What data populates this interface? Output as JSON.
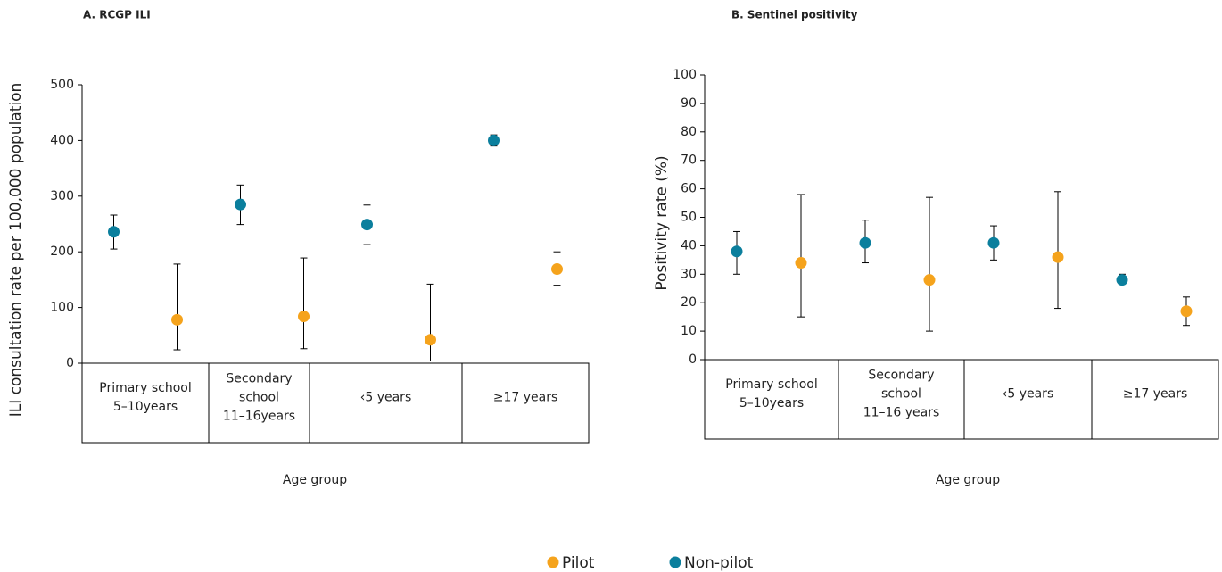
{
  "chart_data": [
    {
      "type": "scatter",
      "title": "A.  RCGP ILI",
      "ylabel": "ILI consultation  rate per 100,000 population",
      "xlabel": "Age group",
      "categories": [
        [
          "Primary school",
          "5–10years"
        ],
        [
          "Secondary",
          "school",
          "11–16years"
        ],
        [
          "‹5 years"
        ],
        [
          "≥17 years"
        ]
      ],
      "ylim": [
        0,
        500
      ],
      "yticks": [
        0,
        100,
        200,
        300,
        400,
        500
      ],
      "series": [
        {
          "name": "Pilot",
          "color": "#f5a31c",
          "values": [
            78,
            84,
            42,
            169
          ],
          "ci_low": [
            24,
            26,
            4,
            140
          ],
          "ci_high": [
            178,
            189,
            142,
            200
          ]
        },
        {
          "name": "Non-pilot",
          "color": "#0b7f9d",
          "values": [
            236,
            285,
            249,
            400
          ],
          "ci_low": [
            205,
            249,
            213,
            390
          ],
          "ci_high": [
            266,
            320,
            284,
            410
          ]
        }
      ]
    },
    {
      "type": "scatter",
      "title": "B.  Sentinel positivity",
      "ylabel": "Positivity rate  (%)",
      "xlabel": "Age group",
      "categories": [
        [
          "Primary school",
          "5–10years"
        ],
        [
          "Secondary",
          "school",
          "11–16 years"
        ],
        [
          "‹5 years"
        ],
        [
          "≥17 years"
        ]
      ],
      "ylim": [
        0,
        100
      ],
      "yticks": [
        0,
        10,
        20,
        30,
        40,
        50,
        60,
        70,
        80,
        90,
        100
      ],
      "series": [
        {
          "name": "Pilot",
          "color": "#f5a31c",
          "values": [
            34,
            28,
            36,
            17
          ],
          "ci_low": [
            15,
            10,
            18,
            12
          ],
          "ci_high": [
            58,
            57,
            59,
            22
          ]
        },
        {
          "name": "Non-pilot",
          "color": "#0b7f9d",
          "values": [
            38,
            41,
            41,
            28
          ],
          "ci_low": [
            30,
            34,
            35,
            27
          ],
          "ci_high": [
            45,
            49,
            47,
            30
          ]
        }
      ]
    }
  ]
}
